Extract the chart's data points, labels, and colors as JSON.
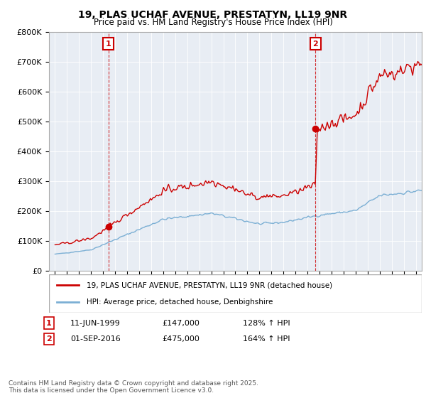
{
  "title": "19, PLAS UCHAF AVENUE, PRESTATYN, LL19 9NR",
  "subtitle": "Price paid vs. HM Land Registry's House Price Index (HPI)",
  "ylabel_ticks": [
    "£0",
    "£100K",
    "£200K",
    "£300K",
    "£400K",
    "£500K",
    "£600K",
    "£700K",
    "£800K"
  ],
  "ylim": [
    0,
    800000
  ],
  "xlim_start": 1994.5,
  "xlim_end": 2025.5,
  "sale1_date": 1999.44,
  "sale1_price": 147000,
  "sale1_label": "1",
  "sale2_date": 2016.67,
  "sale2_price": 475000,
  "sale2_label": "2",
  "red_line_color": "#cc0000",
  "blue_line_color": "#7bafd4",
  "vline_color": "#cc0000",
  "annotation_box_color": "#cc0000",
  "legend_label_red": "19, PLAS UCHAF AVENUE, PRESTATYN, LL19 9NR (detached house)",
  "legend_label_blue": "HPI: Average price, detached house, Denbighshire",
  "note1_label": "1",
  "note1_date": "11-JUN-1999",
  "note1_price": "£147,000",
  "note1_hpi": "128% ↑ HPI",
  "note2_label": "2",
  "note2_date": "01-SEP-2016",
  "note2_price": "£475,000",
  "note2_hpi": "164% ↑ HPI",
  "footer": "Contains HM Land Registry data © Crown copyright and database right 2025.\nThis data is licensed under the Open Government Licence v3.0.",
  "background_color": "#ffffff",
  "plot_bg_color": "#e8edf4",
  "grid_color": "#ffffff"
}
